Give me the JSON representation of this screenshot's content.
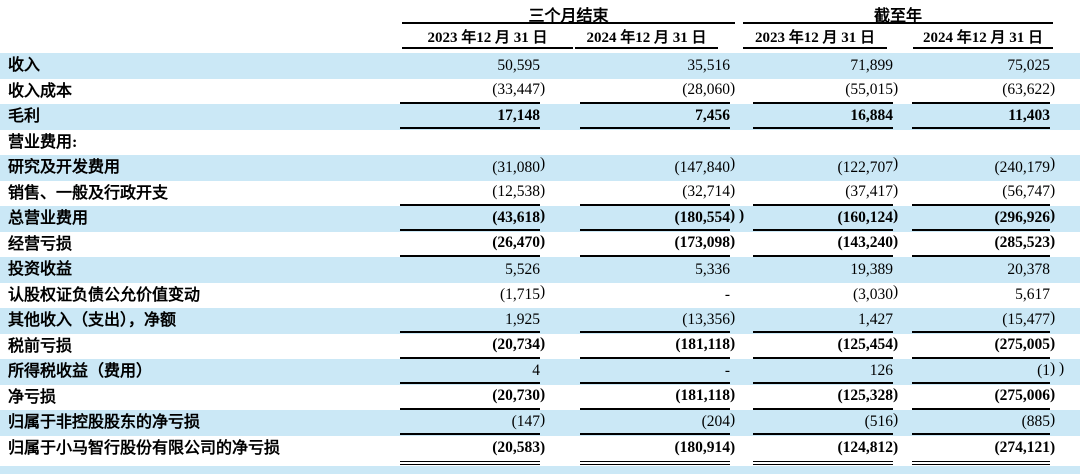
{
  "colors": {
    "row_shade": "#cbe8f6",
    "rule_line": "#000000",
    "text": "#000000"
  },
  "table": {
    "col_groups": [
      {
        "label": "三个月结束"
      },
      {
        "label": "截至年"
      }
    ],
    "columns": [
      "2023 年12 月 31 日",
      "2024 年12 月 31 日",
      "2023 年12 月 31 日",
      "2024 年12 月 31 日"
    ],
    "rows": [
      {
        "label": "收入",
        "values": [
          "50,595",
          "35,516",
          "71,899",
          "75,025"
        ],
        "bold": false,
        "shaded": true,
        "underline": "none"
      },
      {
        "label": "收入成本",
        "values": [
          "(33,447)",
          "(28,060)",
          "(55,015)",
          "(63,622)"
        ],
        "bold": false,
        "shaded": false,
        "underline": "single"
      },
      {
        "label": "毛利",
        "values": [
          "17,148",
          "7,456",
          "16,884",
          "11,403"
        ],
        "bold": true,
        "shaded": true,
        "underline": "single"
      },
      {
        "label": "营业费用:",
        "values": [
          "",
          "",
          "",
          ""
        ],
        "bold": false,
        "shaded": false,
        "underline": "none"
      },
      {
        "label": "研究及开发费用",
        "values": [
          "(31,080)",
          "(147,840)",
          "(122,707)",
          "(240,179)"
        ],
        "bold": false,
        "shaded": true,
        "underline": "none"
      },
      {
        "label": "销售、一般及行政开支",
        "values": [
          "(12,538)",
          "(32,714)",
          "(37,417)",
          "(56,747)"
        ],
        "bold": false,
        "shaded": false,
        "underline": "single"
      },
      {
        "label": "总营业费用",
        "values": [
          "(43,618)",
          "(180,554) )",
          "(160,124)",
          "(296,926)"
        ],
        "bold": true,
        "shaded": true,
        "underline": "single"
      },
      {
        "label": "经营亏损",
        "values": [
          "(26,470)",
          "(173,098)",
          "(143,240)",
          "(285,523)"
        ],
        "bold": true,
        "shaded": false,
        "underline": "single"
      },
      {
        "label": "投资收益",
        "values": [
          "5,526",
          "5,336",
          "19,389",
          "20,378"
        ],
        "bold": false,
        "shaded": true,
        "underline": "none"
      },
      {
        "label": "认股权证负债公允价值变动",
        "values": [
          "(1,715)",
          "-",
          "(3,030)",
          "5,617"
        ],
        "bold": false,
        "shaded": false,
        "underline": "none"
      },
      {
        "label": "其他收入（支出），净额",
        "values": [
          "1,925",
          "(13,356)",
          "1,427",
          "(15,477)"
        ],
        "bold": false,
        "shaded": true,
        "underline": "single"
      },
      {
        "label": "税前亏损",
        "values": [
          "(20,734)",
          "(181,118)",
          "(125,454)",
          "(275,005)"
        ],
        "bold": true,
        "shaded": false,
        "underline": "single"
      },
      {
        "label": "所得税收益（费用）",
        "values": [
          "4",
          "-",
          "126",
          "(1) )"
        ],
        "bold": false,
        "shaded": true,
        "underline": "single"
      },
      {
        "label": "净亏损",
        "values": [
          "(20,730)",
          "(181,118)",
          "(125,328)",
          "(275,006)"
        ],
        "bold": true,
        "shaded": false,
        "underline": "single"
      },
      {
        "label": "归属于非控股股东的净亏损",
        "values": [
          "(147)",
          "(204)",
          "(516)",
          "(885)"
        ],
        "bold": false,
        "shaded": true,
        "underline": "single"
      },
      {
        "label": "归属于小马智行股份有限公司的净亏损",
        "values": [
          "(20,583)",
          "(180,914)",
          "(124,812)",
          "(274,121)"
        ],
        "bold": true,
        "shaded": false,
        "underline": "double"
      }
    ]
  }
}
